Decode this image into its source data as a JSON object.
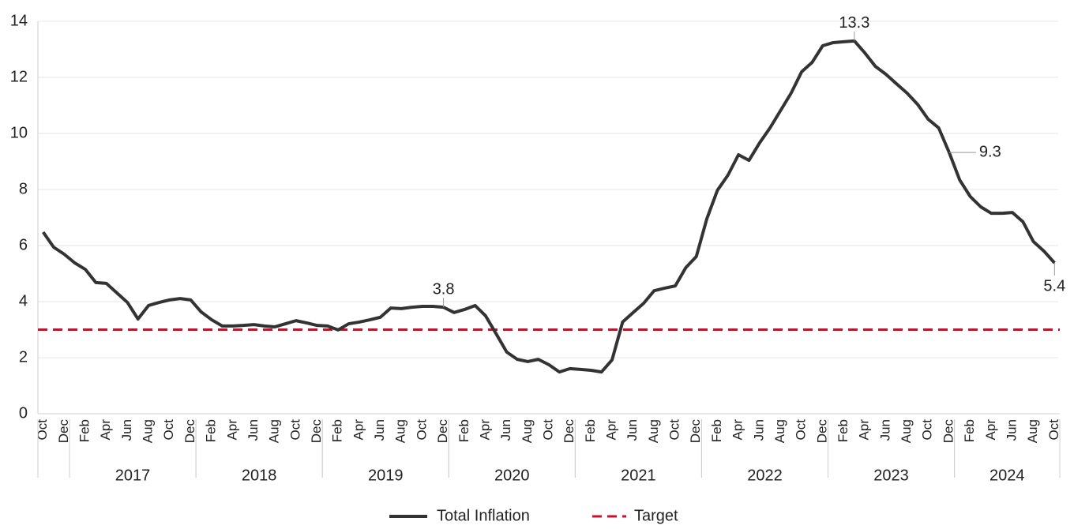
{
  "chart_data": {
    "type": "line",
    "categories": [
      "Oct",
      null,
      "Dec",
      null,
      "Feb",
      null,
      "Apr",
      null,
      "Jun",
      null,
      "Aug",
      null,
      "Oct",
      null,
      "Dec",
      null,
      "Feb",
      null,
      "Apr",
      null,
      "Jun",
      null,
      "Aug",
      null,
      "Oct",
      null,
      "Dec",
      null,
      "Feb",
      null,
      "Apr",
      null,
      "Jun",
      null,
      "Aug",
      null,
      "Oct",
      null,
      "Dec",
      null,
      "Feb",
      null,
      "Apr",
      null,
      "Jun",
      null,
      "Aug",
      null,
      "Oct",
      null,
      "Dec",
      null,
      "Feb",
      null,
      "Apr",
      null,
      "Jun",
      null,
      "Aug",
      null,
      "Oct",
      null,
      "Dec",
      null,
      "Feb",
      null,
      "Apr",
      null,
      "Jun",
      null,
      "Aug",
      null,
      "Oct",
      null,
      "Dec",
      null,
      "Feb",
      null,
      "Apr",
      null,
      "Jun",
      null,
      "Aug",
      null,
      "Oct",
      null,
      "Dec",
      null,
      "Feb",
      null,
      "Apr",
      null,
      "Jun",
      null,
      "Aug",
      null,
      "Oct"
    ],
    "groups": [
      {
        "label": "2017",
        "from": 3,
        "to": 14
      },
      {
        "label": "2018",
        "from": 15,
        "to": 26
      },
      {
        "label": "2019",
        "from": 27,
        "to": 38
      },
      {
        "label": "2020",
        "from": 39,
        "to": 50
      },
      {
        "label": "2021",
        "from": 51,
        "to": 62
      },
      {
        "label": "2022",
        "from": 63,
        "to": 74
      },
      {
        "label": "2023",
        "from": 75,
        "to": 86
      },
      {
        "label": "2024",
        "from": 87,
        "to": 96
      }
    ],
    "series": [
      {
        "name": "Total Inflation",
        "color": "#333333",
        "values": [
          6.48,
          5.94,
          5.69,
          5.38,
          5.15,
          4.68,
          4.65,
          4.31,
          3.97,
          3.38,
          3.86,
          3.97,
          4.06,
          4.11,
          4.06,
          3.63,
          3.35,
          3.13,
          3.13,
          3.15,
          3.18,
          3.13,
          3.1,
          3.21,
          3.32,
          3.24,
          3.15,
          3.13,
          2.99,
          3.21,
          3.27,
          3.35,
          3.44,
          3.77,
          3.75,
          3.8,
          3.83,
          3.83,
          3.8,
          3.61,
          3.72,
          3.86,
          3.49,
          2.85,
          2.2,
          1.94,
          1.86,
          1.94,
          1.75,
          1.49,
          1.61,
          1.58,
          1.55,
          1.49,
          1.92,
          3.27,
          3.61,
          3.94,
          4.39,
          4.48,
          4.56,
          5.21,
          5.61,
          6.96,
          7.97,
          8.51,
          9.24,
          9.04,
          9.66,
          10.2,
          10.82,
          11.44,
          12.2,
          12.54,
          13.13,
          13.24,
          13.27,
          13.3,
          12.87,
          12.39,
          12.11,
          11.77,
          11.44,
          11.04,
          10.51,
          10.2,
          9.32,
          8.34,
          7.75,
          7.38,
          7.15,
          7.15,
          7.18,
          6.85,
          6.14,
          5.8,
          5.38
        ],
        "value_labels": [
          null,
          null,
          null,
          null,
          null,
          null,
          null,
          null,
          null,
          null,
          null,
          null,
          null,
          null,
          null,
          null,
          null,
          null,
          null,
          null,
          null,
          null,
          null,
          null,
          null,
          null,
          null,
          null,
          null,
          null,
          null,
          null,
          null,
          null,
          null,
          null,
          null,
          null,
          "3.8",
          null,
          null,
          null,
          null,
          null,
          null,
          null,
          null,
          null,
          null,
          null,
          null,
          null,
          null,
          null,
          null,
          null,
          null,
          null,
          null,
          null,
          null,
          null,
          null,
          null,
          null,
          null,
          null,
          null,
          null,
          null,
          null,
          null,
          null,
          null,
          null,
          null,
          null,
          "13.3",
          null,
          null,
          null,
          null,
          null,
          null,
          null,
          null,
          "9.3",
          null,
          null,
          null,
          null,
          null,
          null,
          null,
          null,
          null,
          "5.4"
        ]
      }
    ],
    "reference_lines": [
      {
        "name": "Target",
        "value": 3,
        "color": "#c8102e",
        "dash": true
      }
    ],
    "ylim": [
      0,
      14
    ],
    "yticks": [
      0,
      2,
      4,
      6,
      8,
      10,
      12,
      14
    ],
    "grid": true
  }
}
